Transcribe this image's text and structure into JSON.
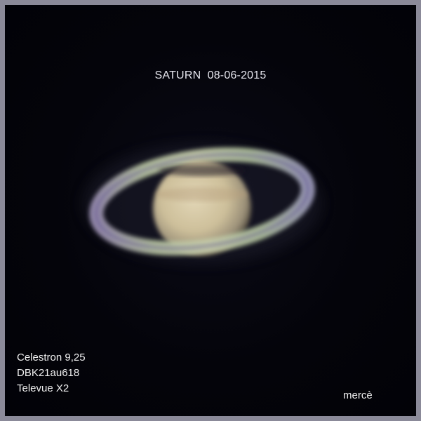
{
  "image": {
    "title": "SATURN  08-06-2015",
    "equipment": [
      "Celestron 9,25",
      "DBK21au618",
      "Televue X2"
    ],
    "author": "mercè",
    "colors": {
      "frame": "#8b8a99",
      "background": "#03030a",
      "planet_body": "#d6c8a4",
      "ring": "#b7c2a0",
      "text": "#f0f0f0"
    }
  }
}
